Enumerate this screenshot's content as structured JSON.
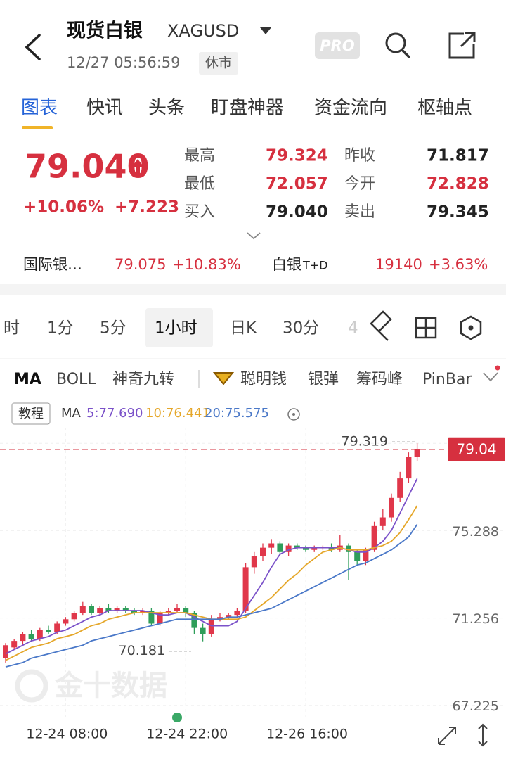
{
  "header": {
    "title": "现货白银",
    "symbol": "XAGUSD",
    "datetime": "12/27 05:56:59",
    "status": "休市",
    "badge": "PRO"
  },
  "tabs": [
    "图表",
    "快讯",
    "头条",
    "盯盘神器",
    "资金流向",
    "枢轴点"
  ],
  "quote": {
    "price": "79.040",
    "change_pct": "+10.06%",
    "change": "+7.223",
    "stats": [
      {
        "label": "最高",
        "value": "79.324"
      },
      {
        "label": "最低",
        "value": "72.057"
      },
      {
        "label": "买入",
        "value": "79.040"
      },
      {
        "label": "昨收",
        "value": "71.817"
      },
      {
        "label": "今开",
        "value": "72.828"
      },
      {
        "label": "卖出",
        "value": "79.345"
      }
    ]
  },
  "related": [
    {
      "name": "国际银…",
      "price": "79.075",
      "pct": "+10.83%"
    },
    {
      "name": "白银",
      "suffix": "T+D",
      "price": "19140",
      "pct": "+3.63%"
    }
  ],
  "periods": [
    "时",
    "1分",
    "5分",
    "1小时",
    "日K",
    "30分",
    "4"
  ],
  "indicators": [
    "MA",
    "BOLL",
    "神奇九转",
    "聪明钱",
    "银弹",
    "筹码峰",
    "PinBar"
  ],
  "tutorial": "教程",
  "watermark": "金十数据",
  "chart_data": {
    "type": "candlestick",
    "categories": [
      null,
      null,
      null,
      null,
      null,
      null,
      null,
      "12-24 08:00",
      null,
      null,
      null,
      null,
      null,
      null,
      null,
      null,
      null,
      null,
      null,
      null,
      null,
      "12-24 22:00",
      null,
      null,
      null,
      null,
      null,
      null,
      null,
      null,
      null,
      null,
      null,
      null,
      null,
      "12-26 16:00",
      null,
      null,
      null,
      null,
      null,
      null,
      null,
      null,
      null,
      null,
      null,
      null,
      null
    ],
    "open": [
      69.4,
      69.9,
      70.2,
      70.5,
      70.3,
      70.7,
      70.6,
      71.0,
      71.2,
      71.5,
      71.8,
      71.5,
      71.7,
      71.6,
      71.7,
      71.6,
      71.5,
      71.6,
      71.0,
      71.5,
      71.6,
      71.7,
      71.5,
      70.8,
      70.5,
      71.2,
      71.3,
      71.4,
      71.6,
      73.6,
      74.1,
      74.5,
      74.7,
      74.3,
      74.6,
      74.5,
      74.4,
      74.5,
      74.55,
      74.4,
      74.6,
      74.3,
      73.9,
      74.4,
      75.5,
      75.9,
      76.8,
      77.7,
      78.7
    ],
    "high": [
      70.1,
      70.3,
      70.6,
      70.7,
      70.8,
      70.9,
      71.1,
      71.3,
      71.6,
      72.0,
      71.9,
      71.8,
      71.9,
      71.8,
      71.8,
      71.7,
      71.7,
      71.7,
      71.6,
      71.7,
      71.9,
      71.8,
      71.6,
      71.0,
      71.4,
      71.5,
      71.5,
      71.7,
      73.8,
      74.3,
      74.7,
      74.9,
      74.8,
      74.7,
      74.7,
      74.6,
      74.6,
      74.6,
      74.7,
      75.1,
      74.7,
      74.4,
      74.5,
      75.7,
      76.3,
      77.0,
      78.0,
      78.9,
      79.319
    ],
    "low": [
      69.2,
      69.8,
      70.0,
      70.2,
      70.2,
      70.5,
      70.5,
      70.9,
      71.1,
      71.4,
      71.4,
      71.4,
      71.5,
      71.5,
      71.5,
      71.4,
      71.4,
      70.9,
      70.9,
      71.4,
      71.5,
      71.3,
      70.5,
      70.181,
      70.4,
      71.1,
      71.2,
      71.3,
      71.5,
      73.3,
      73.9,
      74.2,
      74.2,
      74.1,
      74.4,
      74.3,
      74.3,
      74.4,
      74.3,
      74.3,
      73.0,
      73.7,
      73.7,
      74.3,
      75.3,
      75.7,
      76.6,
      77.5,
      78.5
    ],
    "close": [
      70.0,
      70.2,
      70.5,
      70.3,
      70.7,
      70.6,
      71.0,
      71.2,
      71.5,
      71.8,
      71.5,
      71.7,
      71.6,
      71.7,
      71.6,
      71.5,
      71.6,
      71.0,
      71.5,
      71.6,
      71.7,
      71.5,
      70.8,
      70.5,
      71.2,
      71.3,
      71.4,
      71.6,
      73.6,
      74.1,
      74.5,
      74.7,
      74.3,
      74.6,
      74.5,
      74.4,
      74.5,
      74.55,
      74.4,
      74.6,
      74.3,
      73.9,
      74.4,
      75.5,
      75.9,
      76.8,
      77.7,
      78.7,
      79.04
    ],
    "up_color": "#e0374a",
    "down_color": "#2f9e5a",
    "ma_title": "MA",
    "series": [
      {
        "label": "5:77.690",
        "color": "#7b52c9",
        "values": [
          69.6,
          69.8,
          70.0,
          70.2,
          70.3,
          70.4,
          70.6,
          70.7,
          70.9,
          71.1,
          71.3,
          71.4,
          71.6,
          71.6,
          71.6,
          71.6,
          71.6,
          71.5,
          71.4,
          71.4,
          71.5,
          71.5,
          71.3,
          71.1,
          70.9,
          70.9,
          70.9,
          71.1,
          71.7,
          72.3,
          72.9,
          73.6,
          74.2,
          74.4,
          74.5,
          74.5,
          74.5,
          74.5,
          74.5,
          74.5,
          74.4,
          74.3,
          74.3,
          74.5,
          74.8,
          75.3,
          76.1,
          76.9,
          77.69
        ]
      },
      {
        "label": "10:76.441",
        "color": "#e5a72a",
        "values": [
          69.3,
          69.5,
          69.7,
          69.9,
          70.0,
          70.1,
          70.3,
          70.4,
          70.5,
          70.7,
          70.9,
          71.0,
          71.2,
          71.3,
          71.4,
          71.5,
          71.5,
          71.5,
          71.5,
          71.5,
          71.5,
          71.5,
          71.4,
          71.3,
          71.2,
          71.2,
          71.2,
          71.2,
          71.3,
          71.6,
          71.9,
          72.2,
          72.6,
          73.0,
          73.3,
          73.7,
          74.0,
          74.3,
          74.4,
          74.5,
          74.4,
          74.4,
          74.4,
          74.5,
          74.6,
          74.8,
          75.2,
          75.8,
          76.441
        ]
      },
      {
        "label": "20:75.575",
        "color": "#4a78c8",
        "values": [
          69.0,
          69.1,
          69.2,
          69.4,
          69.5,
          69.6,
          69.7,
          69.8,
          69.9,
          70.0,
          70.2,
          70.3,
          70.4,
          70.5,
          70.6,
          70.7,
          70.8,
          70.9,
          71.0,
          71.1,
          71.2,
          71.2,
          71.2,
          71.2,
          71.2,
          71.2,
          71.3,
          71.3,
          71.4,
          71.5,
          71.6,
          71.7,
          71.9,
          72.1,
          72.3,
          72.5,
          72.7,
          72.9,
          73.1,
          73.3,
          73.5,
          73.7,
          73.8,
          74.0,
          74.2,
          74.4,
          74.7,
          75.0,
          75.575
        ]
      }
    ],
    "ylim": [
      66.6,
      80.3
    ],
    "yticks": [
      79.319,
      75.288,
      71.256,
      67.225
    ],
    "grid": true,
    "last_price": 79.04,
    "high_mark": 79.319,
    "low_mark": 70.181
  }
}
